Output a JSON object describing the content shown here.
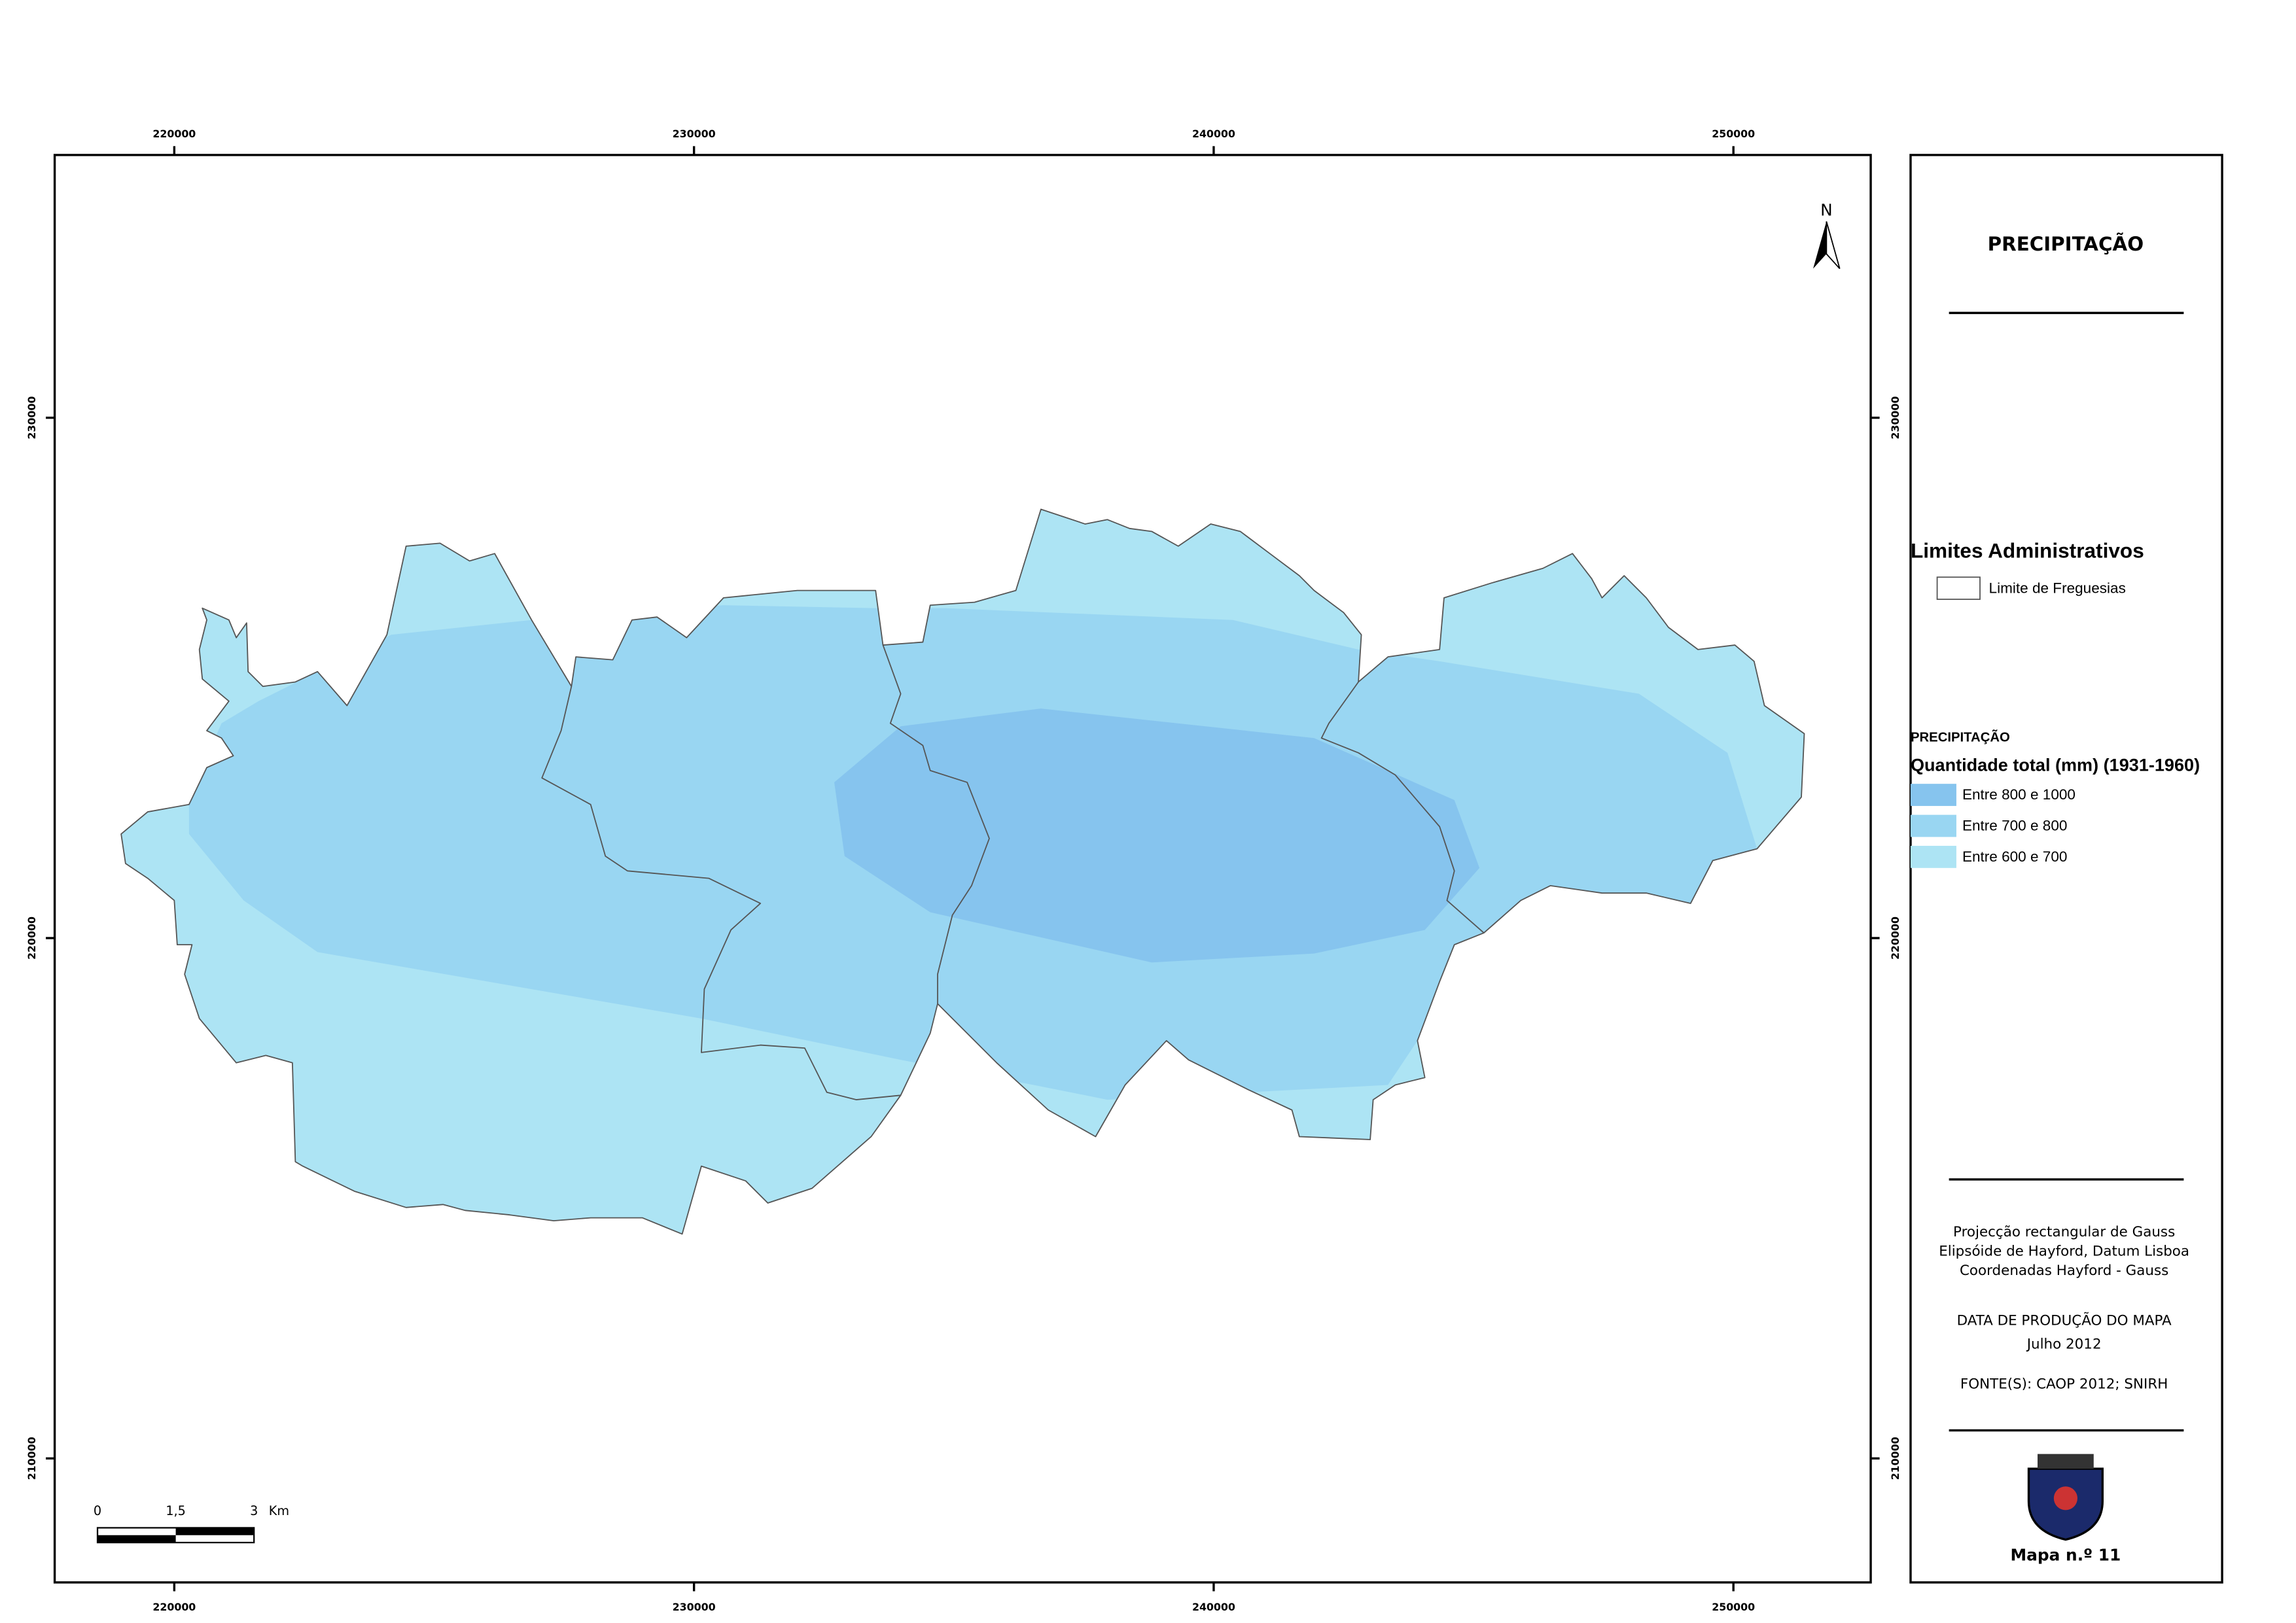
{
  "title": "PRECIPITAÇÃO",
  "coordinates": {
    "x_ticks": [
      220000,
      230000,
      240000,
      250000
    ],
    "y_ticks": [
      230000,
      220000,
      210000
    ]
  },
  "north": "N",
  "legend": {
    "admin_title": "Limites Administrativos",
    "admin_items": [
      {
        "label": "Limite de Freguesias",
        "color": "#ffffff"
      }
    ],
    "precip_title": "PRECIPITAÇÃO",
    "precip_subtitle": "Quantidade total (mm) (1931-1960)",
    "precip_items": [
      {
        "label": "Entre 800 e 1000",
        "color": "#86c4ee"
      },
      {
        "label": "Entre 700 e 800",
        "color": "#99d6f2"
      },
      {
        "label": "Entre 600 e 700",
        "color": "#ade4f4"
      }
    ]
  },
  "notes": [
    "Projecção rectangular de Gauss",
    "Elipsóide de Hayford, Datum Lisboa",
    "Coordenadas Hayford - Gauss",
    "DATA DE PRODUÇÃO DO MAPA",
    "Julho 2012",
    "FONTE(S): CAOP 2012; SNIRH"
  ],
  "scale_bar": {
    "labels": [
      "0",
      "1,5",
      "3"
    ],
    "unit": "Km"
  },
  "map_number": "Mapa n.º 11"
}
